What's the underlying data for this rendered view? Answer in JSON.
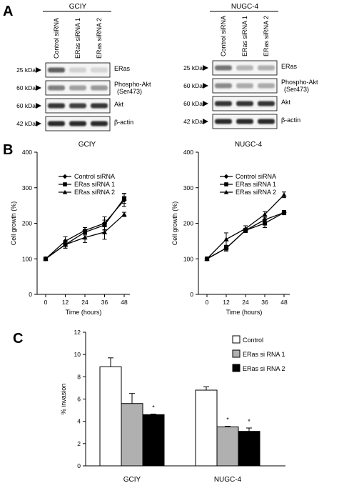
{
  "panels": [
    "A",
    "B",
    "C"
  ],
  "blots": [
    {
      "cell_line": "GCIY",
      "lanes": [
        "Control siRNA",
        "ERas siRNA 1",
        "ERas siRNA 2"
      ],
      "rows": [
        {
          "kda": "25 kDa",
          "label": [
            "ERas"
          ],
          "intensity": [
            0.65,
            0.12,
            0.1
          ]
        },
        {
          "kda": "60 kDa",
          "label": [
            "Phospho-Akt",
            "(Ser473)"
          ],
          "intensity": [
            0.5,
            0.35,
            0.38
          ]
        },
        {
          "kda": "60 kDa",
          "label": [
            "Akt"
          ],
          "intensity": [
            0.85,
            0.8,
            0.85
          ]
        },
        {
          "kda": "42 kDa",
          "label": [
            "β-actin"
          ],
          "intensity": [
            0.9,
            0.9,
            0.9
          ]
        }
      ]
    },
    {
      "cell_line": "NUGC-4",
      "lanes": [
        "Control siRNA",
        "ERas siRNA 1",
        "ERas siRNA 2"
      ],
      "rows": [
        {
          "kda": "25 kDa",
          "label": [
            "ERas"
          ],
          "intensity": [
            0.55,
            0.25,
            0.28
          ]
        },
        {
          "kda": "60 kDa",
          "label": [
            "Phospho-Akt",
            "(Ser473)"
          ],
          "intensity": [
            0.45,
            0.3,
            0.3
          ]
        },
        {
          "kda": "60 kDa",
          "label": [
            "Akt"
          ],
          "intensity": [
            0.85,
            0.85,
            0.85
          ]
        },
        {
          "kda": "42 kDa",
          "label": [
            "β-actin"
          ],
          "intensity": [
            0.9,
            0.9,
            0.9
          ]
        }
      ]
    }
  ],
  "chart_data": [
    {
      "type": "line",
      "title": "GCIY",
      "xlabel": "Time (hours)",
      "ylabel": "Cell growth (%)",
      "x": [
        0,
        12,
        24,
        36,
        48
      ],
      "xlim": [
        0,
        48
      ],
      "ylim": [
        0,
        400
      ],
      "yticks": [
        0,
        100,
        200,
        300,
        400
      ],
      "legend": "top-left",
      "series": [
        {
          "name": "Control siRNA",
          "marker": "diamond",
          "values": [
            100,
            150,
            180,
            200,
            265
          ],
          "errors": [
            0,
            12,
            8,
            18,
            18
          ]
        },
        {
          "name": "ERas siRNA 1",
          "marker": "square",
          "values": [
            100,
            140,
            175,
            195,
            270
          ],
          "errors": [
            0,
            10,
            8,
            14,
            14
          ]
        },
        {
          "name": "ERas siRNA 2",
          "marker": "triangle",
          "values": [
            100,
            140,
            160,
            175,
            225
          ],
          "errors": [
            0,
            10,
            14,
            20,
            6
          ]
        }
      ]
    },
    {
      "type": "line",
      "title": "NUGC-4",
      "xlabel": "Time (hours)",
      "ylabel": "Cell growth (%)",
      "x": [
        0,
        12,
        24,
        36,
        48
      ],
      "xlim": [
        0,
        48
      ],
      "ylim": [
        0,
        400
      ],
      "yticks": [
        0,
        100,
        200,
        300,
        400
      ],
      "legend": "top-left",
      "series": [
        {
          "name": "Control siRNA",
          "marker": "diamond",
          "values": [
            100,
            130,
            180,
            210,
            230
          ],
          "errors": [
            0,
            8,
            6,
            10,
            6
          ]
        },
        {
          "name": "ERas siRNA 1",
          "marker": "square",
          "values": [
            100,
            130,
            180,
            200,
            230
          ],
          "errors": [
            0,
            8,
            6,
            12,
            6
          ]
        },
        {
          "name": "ERas siRNA 2",
          "marker": "triangle",
          "values": [
            100,
            155,
            185,
            225,
            280
          ],
          "errors": [
            0,
            18,
            8,
            8,
            8
          ]
        }
      ]
    },
    {
      "type": "bar",
      "categories": [
        "GCIY",
        "NUGC-4"
      ],
      "ylabel": "% invasion",
      "ylim": [
        0,
        12
      ],
      "yticks": [
        0,
        2,
        4,
        6,
        8,
        10,
        12
      ],
      "legend": "top-right",
      "series": [
        {
          "name": "Control",
          "color": "#ffffff",
          "values": [
            8.9,
            6.8
          ],
          "errors": [
            0.8,
            0.3
          ],
          "marks": [
            "",
            ""
          ]
        },
        {
          "name": "ERas si RNA 1",
          "color": "#b0b0b0",
          "values": [
            5.6,
            3.5
          ],
          "errors": [
            0.9,
            0.05
          ],
          "marks": [
            "",
            "*"
          ]
        },
        {
          "name": "ERas si RNA 2",
          "color": "#000000",
          "values": [
            4.6,
            3.1
          ],
          "errors": [
            0.05,
            0.3
          ],
          "marks": [
            "*",
            "*"
          ]
        }
      ]
    }
  ]
}
